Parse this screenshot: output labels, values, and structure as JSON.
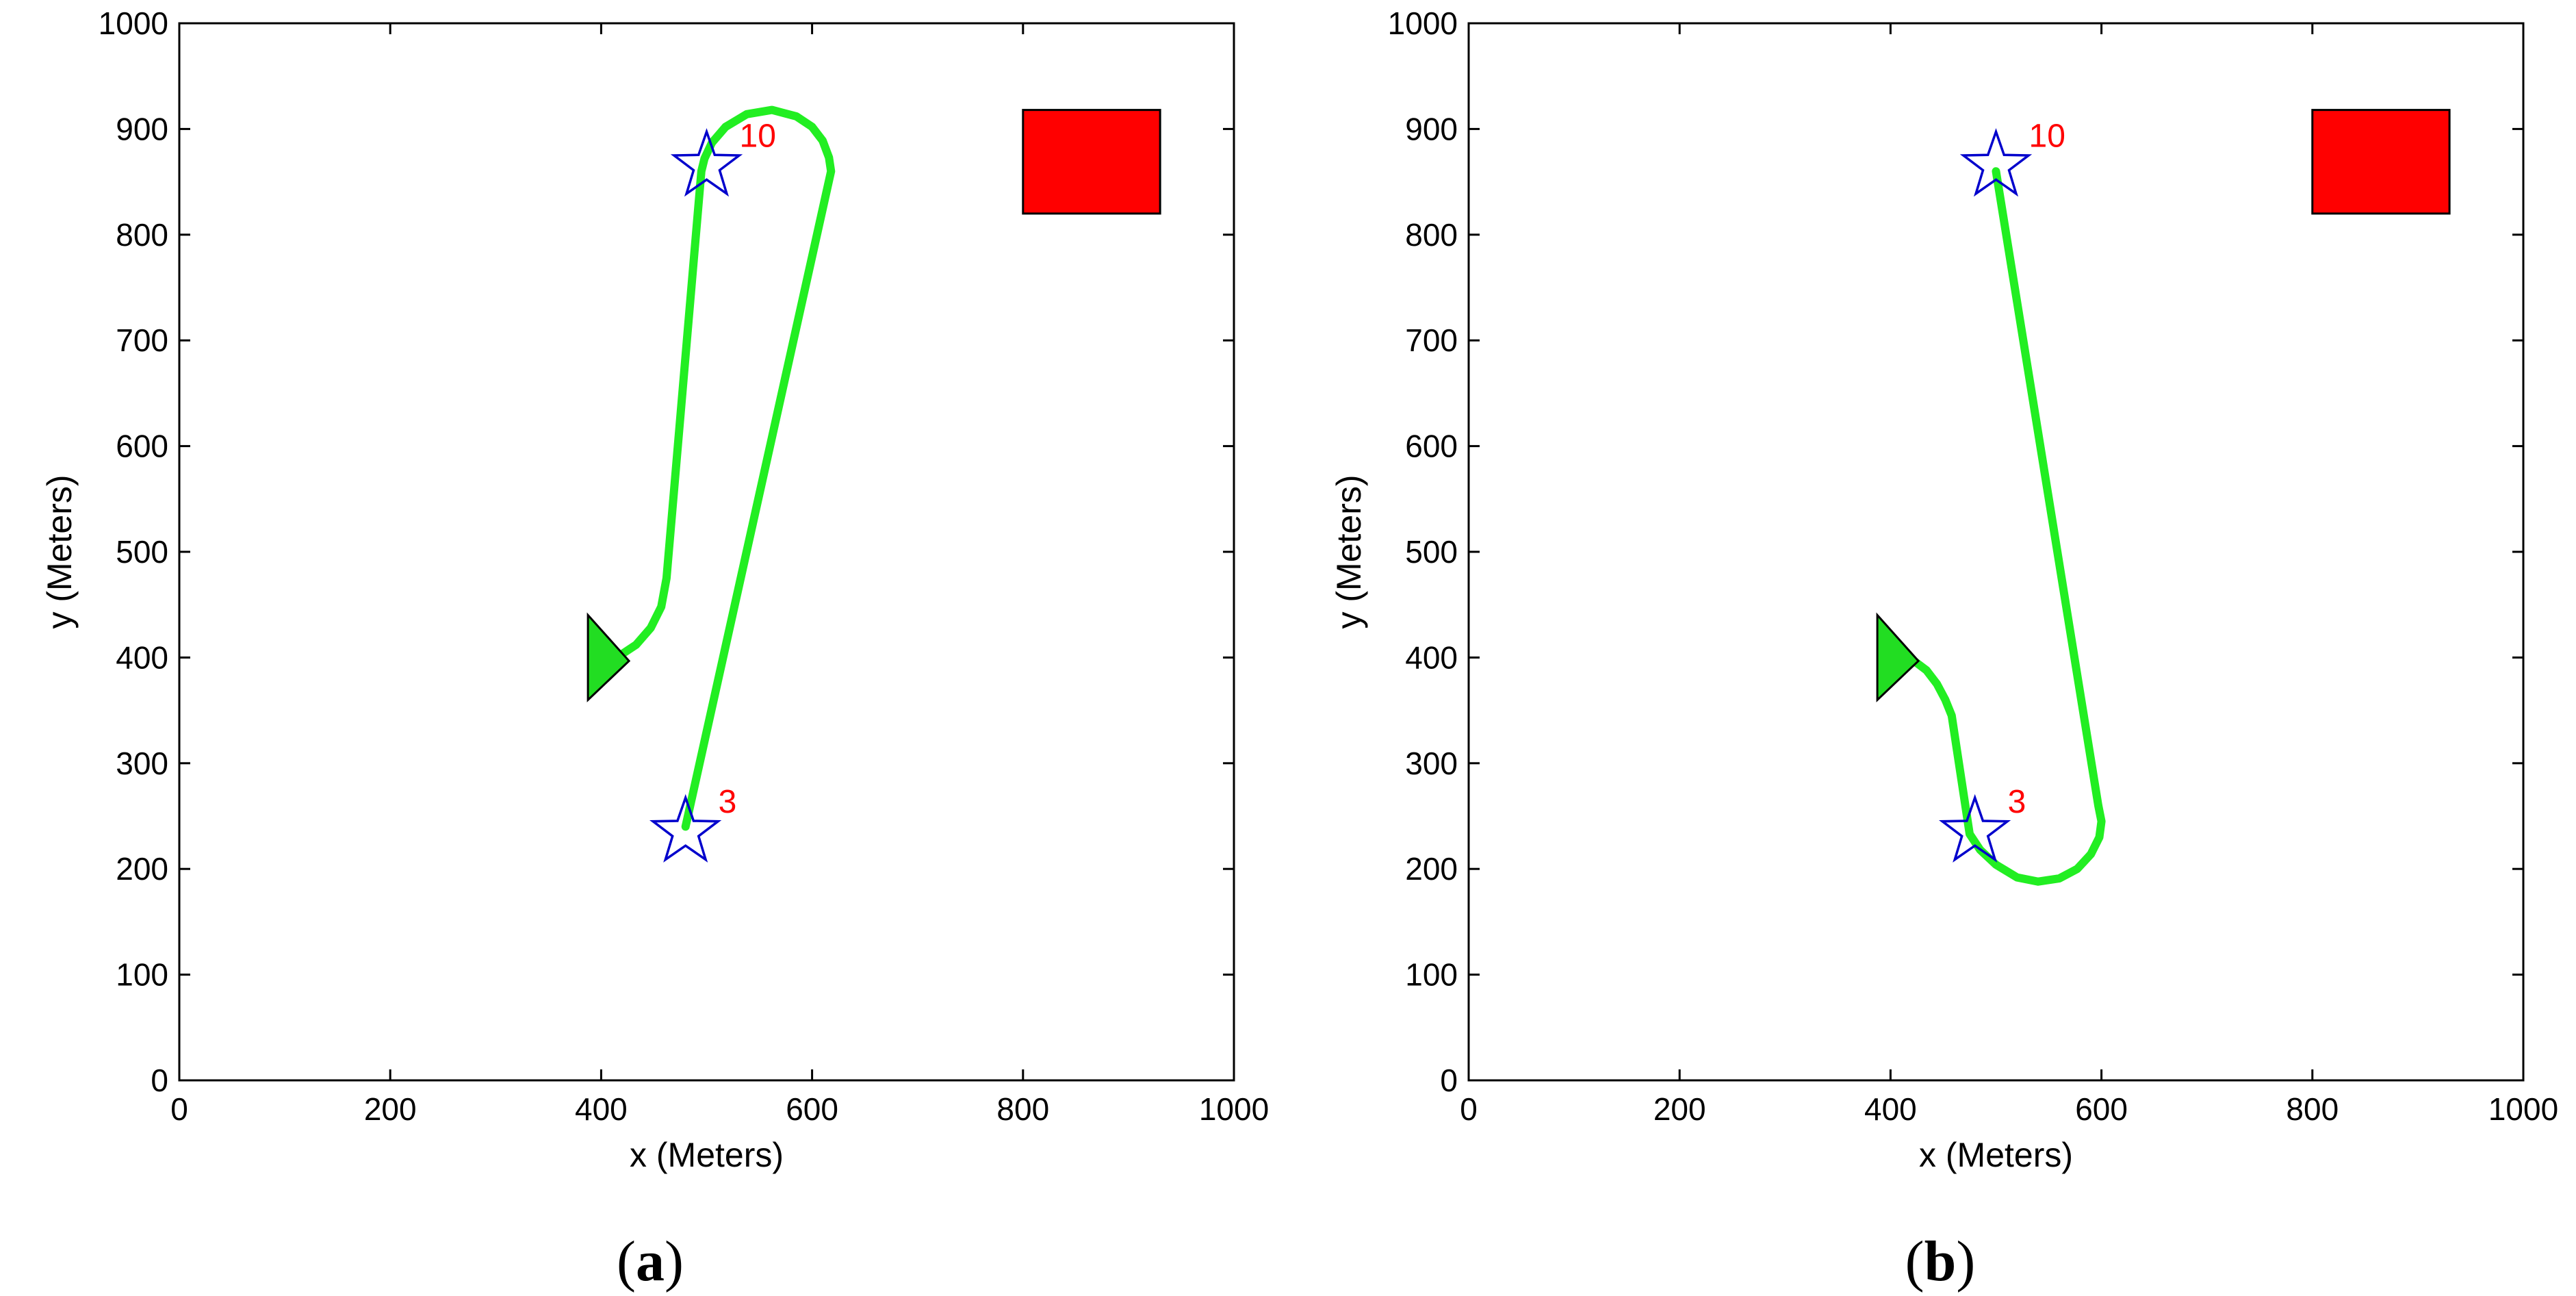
{
  "colors": {
    "path": "#22ee22",
    "star": "#0000cc",
    "waypoint_label": "#ff0000",
    "obstacle": "#ff0000",
    "vehicle": "#22dd22",
    "axis": "#000000"
  },
  "chart_data": [
    {
      "type": "line",
      "panel_label": "a",
      "xlabel": "x (Meters)",
      "ylabel": "y (Meters)",
      "xlim": [
        0,
        1000
      ],
      "ylim": [
        0,
        1000
      ],
      "xticks": [
        0,
        200,
        400,
        600,
        800,
        1000
      ],
      "yticks": [
        0,
        100,
        200,
        300,
        400,
        500,
        600,
        700,
        800,
        900,
        1000
      ],
      "grid": false,
      "series": [
        {
          "name": "path",
          "x": [
            480,
            618,
            616,
            610,
            600,
            585,
            562,
            538,
            518,
            505,
            498,
            495,
            462,
            457,
            447,
            433,
            418,
            405
          ],
          "y": [
            240,
            860,
            873,
            889,
            902,
            912,
            918,
            914,
            902,
            887,
            872,
            860,
            475,
            448,
            428,
            412,
            402,
            400
          ]
        }
      ],
      "waypoints": [
        {
          "label": "10",
          "x": 500,
          "y": 865
        },
        {
          "label": "3",
          "x": 480,
          "y": 235
        }
      ],
      "obstacle": {
        "x": [
          800,
          930
        ],
        "y": [
          820,
          918
        ]
      },
      "vehicle": {
        "x": 405,
        "y": 400,
        "heading": "right"
      }
    },
    {
      "type": "line",
      "panel_label": "b",
      "xlabel": "x (Meters)",
      "ylabel": "y (Meters)",
      "xlim": [
        0,
        1000
      ],
      "ylim": [
        0,
        1000
      ],
      "xticks": [
        0,
        200,
        400,
        600,
        800,
        1000
      ],
      "yticks": [
        0,
        100,
        200,
        300,
        400,
        500,
        600,
        700,
        800,
        900,
        1000
      ],
      "grid": false,
      "series": [
        {
          "name": "path",
          "x": [
            500,
            597,
            600,
            598,
            590,
            577,
            560,
            540,
            520,
            500,
            485,
            475,
            458,
            452,
            444,
            434,
            422,
            410
          ],
          "y": [
            860,
            260,
            245,
            230,
            214,
            200,
            191,
            188,
            192,
            204,
            218,
            233,
            345,
            360,
            375,
            388,
            397,
            400
          ]
        }
      ],
      "waypoints": [
        {
          "label": "10",
          "x": 500,
          "y": 865
        },
        {
          "label": "3",
          "x": 480,
          "y": 235
        }
      ],
      "obstacle": {
        "x": [
          800,
          930
        ],
        "y": [
          820,
          918
        ]
      },
      "vehicle": {
        "x": 405,
        "y": 400,
        "heading": "right"
      }
    }
  ]
}
